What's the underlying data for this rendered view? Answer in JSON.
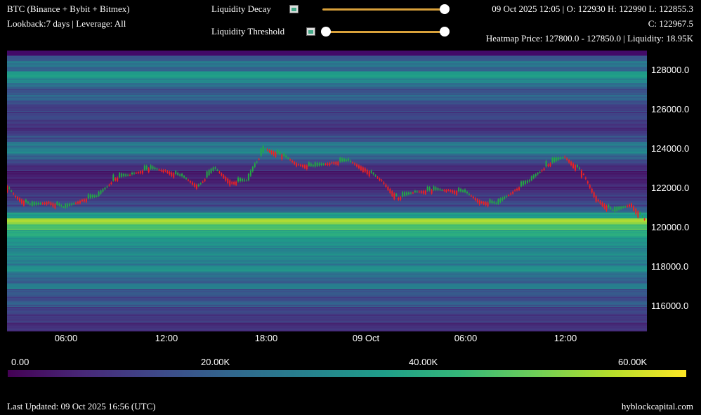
{
  "header": {
    "instrument": "BTC (Binance + Bybit + Bitmex)",
    "settings": "Lookback:7 days | Leverage: All",
    "decay_label": "Liquidity Decay",
    "threshold_label": "Liquidity Threshold",
    "ohlc_line1": "09 Oct 2025 12:05 | O: 122930 H: 122990 L: 122855.3",
    "ohlc_line2": "C: 122967.5",
    "heatmap_info": "Heatmap Price: 127800.0 - 127850.0 | Liquidity: 18.95K"
  },
  "controls": {
    "liquidity_decay": 1.0,
    "liquidity_threshold": [
      0.0,
      1.0
    ]
  },
  "footer": {
    "last_updated": "Last Updated: 09 Oct 2025 16:56 (UTC)",
    "site": "hyblockcapital.com"
  },
  "chart_data": {
    "type": "heatmap",
    "title": "",
    "xlabel": "",
    "ylabel": "",
    "x_ticks": [
      "06:00",
      "12:00",
      "18:00",
      "09 Oct",
      "06:00",
      "12:00"
    ],
    "y_ticks": [
      "128000.0",
      "126000.0",
      "124000.0",
      "122000.0",
      "120000.0",
      "118000.0",
      "116000.0"
    ],
    "ylim": [
      114700,
      129000
    ],
    "colorbar": {
      "ticks": [
        "0.00",
        "20.00K",
        "40.00K",
        "60.00K"
      ],
      "range": [
        0,
        65000
      ],
      "colormap": "viridis"
    },
    "price_series": {
      "x": [
        "08 Oct 02:30",
        "08 Oct 03:00",
        "08 Oct 04:00",
        "08 Oct 05:00",
        "08 Oct 06:00",
        "08 Oct 07:00",
        "08 Oct 08:00",
        "08 Oct 09:00",
        "08 Oct 10:00",
        "08 Oct 11:00",
        "08 Oct 12:00",
        "08 Oct 13:00",
        "08 Oct 14:00",
        "08 Oct 15:00",
        "08 Oct 16:00",
        "08 Oct 17:00",
        "08 Oct 17:30",
        "08 Oct 18:00",
        "08 Oct 19:00",
        "08 Oct 20:00",
        "08 Oct 21:00",
        "08 Oct 22:00",
        "08 Oct 23:00",
        "09 Oct 00:00",
        "09 Oct 01:00",
        "09 Oct 02:00",
        "09 Oct 03:00",
        "09 Oct 04:00",
        "09 Oct 05:00",
        "09 Oct 06:00",
        "09 Oct 07:00",
        "09 Oct 08:00",
        "09 Oct 09:00",
        "09 Oct 10:00",
        "09 Oct 11:00",
        "09 Oct 12:00",
        "09 Oct 13:00",
        "09 Oct 14:00",
        "09 Oct 15:00",
        "09 Oct 16:00",
        "09 Oct 16:55"
      ],
      "y": [
        122100,
        121600,
        121100,
        121300,
        121000,
        121400,
        121600,
        122500,
        122700,
        123000,
        122900,
        122600,
        122100,
        123000,
        122300,
        122400,
        123300,
        124000,
        123700,
        123200,
        123100,
        123300,
        123400,
        123000,
        122400,
        121500,
        121800,
        121900,
        121900,
        121800,
        121300,
        121200,
        121900,
        122400,
        123200,
        123600,
        122900,
        121400,
        120800,
        121200,
        120300
      ]
    },
    "heatmap_rows": [
      {
        "price": 128600,
        "level": 0.28
      },
      {
        "price": 128300,
        "level": 0.42
      },
      {
        "price": 128000,
        "level": 0.3
      },
      {
        "price": 127800,
        "level": 0.55
      },
      {
        "price": 127500,
        "level": 0.48
      },
      {
        "price": 127200,
        "level": 0.35
      },
      {
        "price": 126900,
        "level": 0.25
      },
      {
        "price": 126600,
        "level": 0.33
      },
      {
        "price": 126300,
        "level": 0.22
      },
      {
        "price": 126000,
        "level": 0.18
      },
      {
        "price": 125700,
        "level": 0.22
      },
      {
        "price": 125400,
        "level": 0.2
      },
      {
        "price": 125100,
        "level": 0.15
      },
      {
        "price": 124800,
        "level": 0.18
      },
      {
        "price": 124500,
        "level": 0.25
      },
      {
        "price": 124200,
        "level": 0.4
      },
      {
        "price": 123900,
        "level": 0.45
      },
      {
        "price": 123600,
        "level": 0.32
      },
      {
        "price": 123300,
        "level": 0.2
      },
      {
        "price": 123000,
        "level": 0.12
      },
      {
        "price": 122700,
        "level": 0.08
      },
      {
        "price": 122400,
        "level": 0.1
      },
      {
        "price": 122100,
        "level": 0.12
      },
      {
        "price": 121800,
        "level": 0.15
      },
      {
        "price": 121500,
        "level": 0.18
      },
      {
        "price": 121200,
        "level": 0.22
      },
      {
        "price": 120900,
        "level": 0.3
      },
      {
        "price": 120600,
        "level": 0.55
      },
      {
        "price": 120300,
        "level": 0.85
      },
      {
        "price": 120000,
        "level": 0.7
      },
      {
        "price": 119700,
        "level": 0.62
      },
      {
        "price": 119400,
        "level": 0.55
      },
      {
        "price": 119100,
        "level": 0.5
      },
      {
        "price": 118800,
        "level": 0.45
      },
      {
        "price": 118500,
        "level": 0.48
      },
      {
        "price": 118200,
        "level": 0.42
      },
      {
        "price": 117900,
        "level": 0.5
      },
      {
        "price": 117600,
        "level": 0.38
      },
      {
        "price": 117300,
        "level": 0.3
      },
      {
        "price": 117000,
        "level": 0.42
      },
      {
        "price": 116700,
        "level": 0.28
      },
      {
        "price": 116400,
        "level": 0.24
      },
      {
        "price": 116100,
        "level": 0.3
      },
      {
        "price": 115800,
        "level": 0.2
      },
      {
        "price": 115500,
        "level": 0.18
      },
      {
        "price": 115200,
        "level": 0.16
      },
      {
        "price": 114900,
        "level": 0.14
      }
    ]
  }
}
